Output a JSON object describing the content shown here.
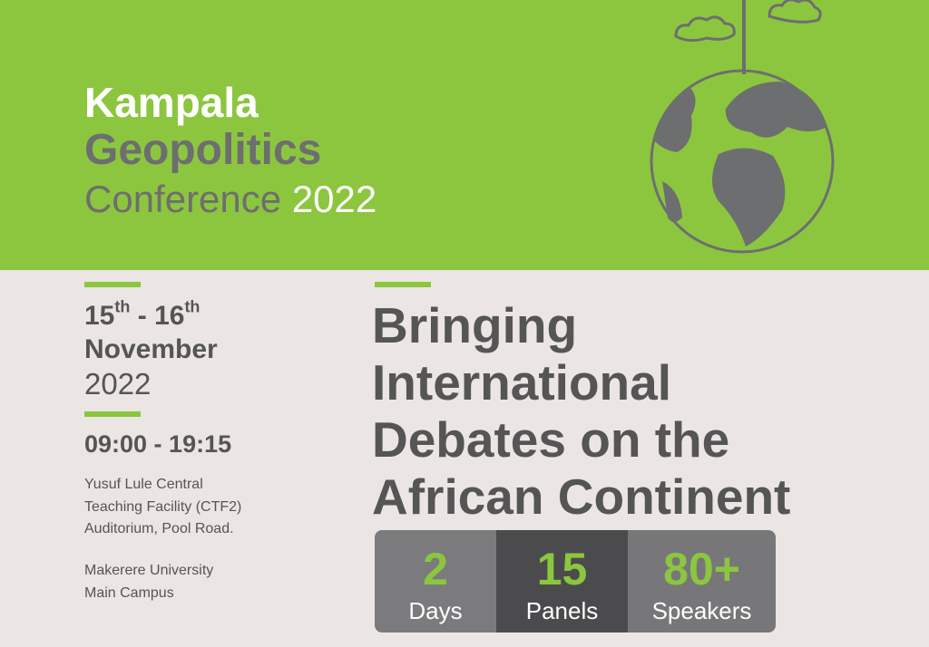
{
  "header": {
    "title_line1": "Kampala",
    "title_line2": "Geopolitics",
    "title_word": "Conference",
    "title_year": "2022"
  },
  "date": {
    "start_day": "15",
    "start_suffix": "th",
    "dash": "-",
    "end_day": "16",
    "end_suffix": "th",
    "month": "November",
    "year": "2022"
  },
  "time": "09:00 - 19:15",
  "venue": [
    "Yusuf Lule Central",
    "Teaching Facility (CTF2)",
    "Auditorium, Pool Road."
  ],
  "campus": [
    "Makerere University",
    "Main Campus"
  ],
  "headline": [
    "Bringing",
    "International",
    "Debates on the",
    "African Continent"
  ],
  "stats": [
    {
      "value": "2",
      "label": "Days"
    },
    {
      "value": "15",
      "label": "Panels"
    },
    {
      "value": "80+",
      "label": "Speakers"
    }
  ]
}
